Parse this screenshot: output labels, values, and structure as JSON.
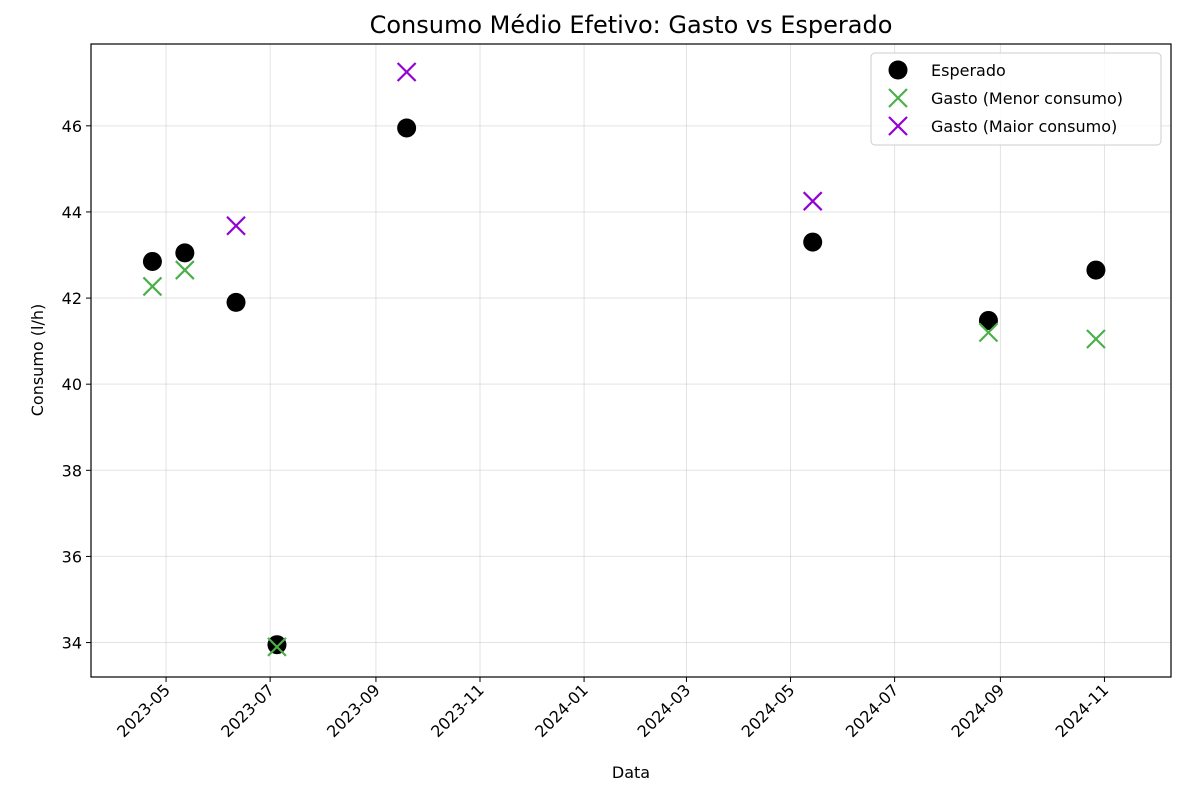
{
  "chart_data": {
    "type": "scatter",
    "title": "Consumo Médio Efetivo: Gasto vs Esperado",
    "xlabel": "Data",
    "ylabel": "Consumo (l/h)",
    "x_axis": {
      "type": "date",
      "min": "2023-03-18",
      "max": "2024-12-10"
    },
    "ylim": [
      33.2,
      47.9
    ],
    "grid": true,
    "legend_position": "top-right",
    "x_ticks": [
      "2023-05",
      "2023-07",
      "2023-09",
      "2023-11",
      "2024-01",
      "2024-03",
      "2024-05",
      "2024-07",
      "2024-09",
      "2024-11"
    ],
    "y_ticks": [
      34,
      36,
      38,
      40,
      42,
      44,
      46
    ],
    "series": [
      {
        "name": "Esperado",
        "marker": "circle",
        "color": "#000000",
        "points": [
          {
            "x": "2023-04-23",
            "y": 42.85
          },
          {
            "x": "2023-05-12",
            "y": 43.05
          },
          {
            "x": "2023-06-11",
            "y": 41.9
          },
          {
            "x": "2023-07-05",
            "y": 33.95
          },
          {
            "x": "2023-09-19",
            "y": 45.95
          },
          {
            "x": "2024-05-14",
            "y": 43.3
          },
          {
            "x": "2024-08-25",
            "y": 41.48
          },
          {
            "x": "2024-10-27",
            "y": 42.65
          }
        ]
      },
      {
        "name": "Gasto (Menor consumo)",
        "marker": "x",
        "color": "#4daf4a",
        "points": [
          {
            "x": "2023-04-23",
            "y": 42.27
          },
          {
            "x": "2023-05-12",
            "y": 42.65
          },
          {
            "x": "2023-07-05",
            "y": 33.9
          },
          {
            "x": "2024-08-25",
            "y": 41.2
          },
          {
            "x": "2024-10-27",
            "y": 41.05
          }
        ]
      },
      {
        "name": "Gasto (Maior consumo)",
        "marker": "x",
        "color": "#9400d3",
        "points": [
          {
            "x": "2023-06-11",
            "y": 43.68
          },
          {
            "x": "2023-09-19",
            "y": 47.25
          },
          {
            "x": "2024-05-14",
            "y": 44.25
          }
        ]
      }
    ]
  }
}
